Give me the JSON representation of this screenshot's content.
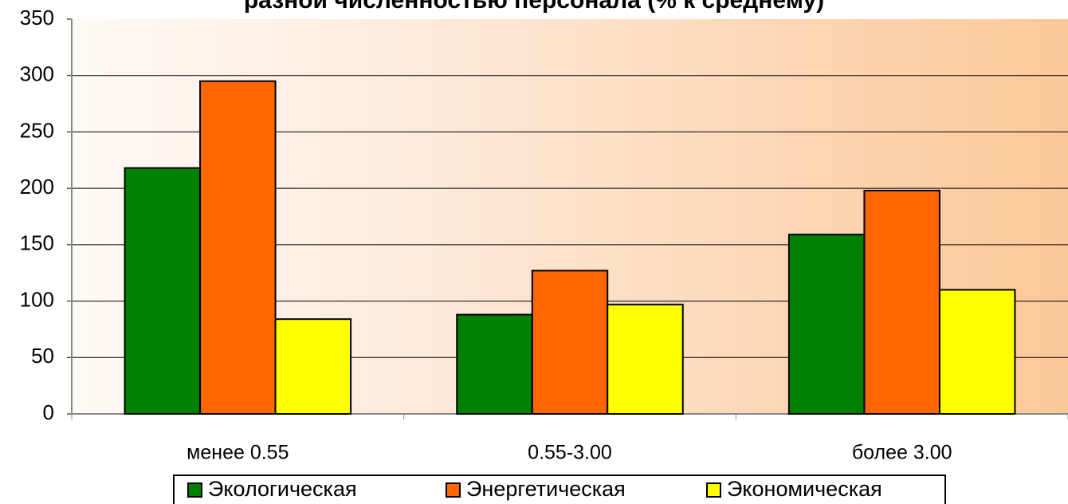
{
  "chart_data": {
    "type": "bar",
    "title": "разной численностью персонала (% к среднему)",
    "categories": [
      "менее 0.55",
      "0.55-3.00",
      "более 3.00"
    ],
    "series": [
      {
        "name": "Экологическая",
        "color": "#008000",
        "values": [
          218,
          88,
          159
        ]
      },
      {
        "name": "Энергетическая",
        "color": "#ff6600",
        "values": [
          295,
          127,
          198
        ]
      },
      {
        "name": "Экономическая",
        "color": "#ffff00",
        "values": [
          84,
          97,
          110
        ]
      }
    ],
    "ylim": [
      0,
      350
    ],
    "yticks": [
      0,
      50,
      100,
      150,
      200,
      250,
      300,
      350
    ],
    "grid": true,
    "legend": "bottom"
  }
}
